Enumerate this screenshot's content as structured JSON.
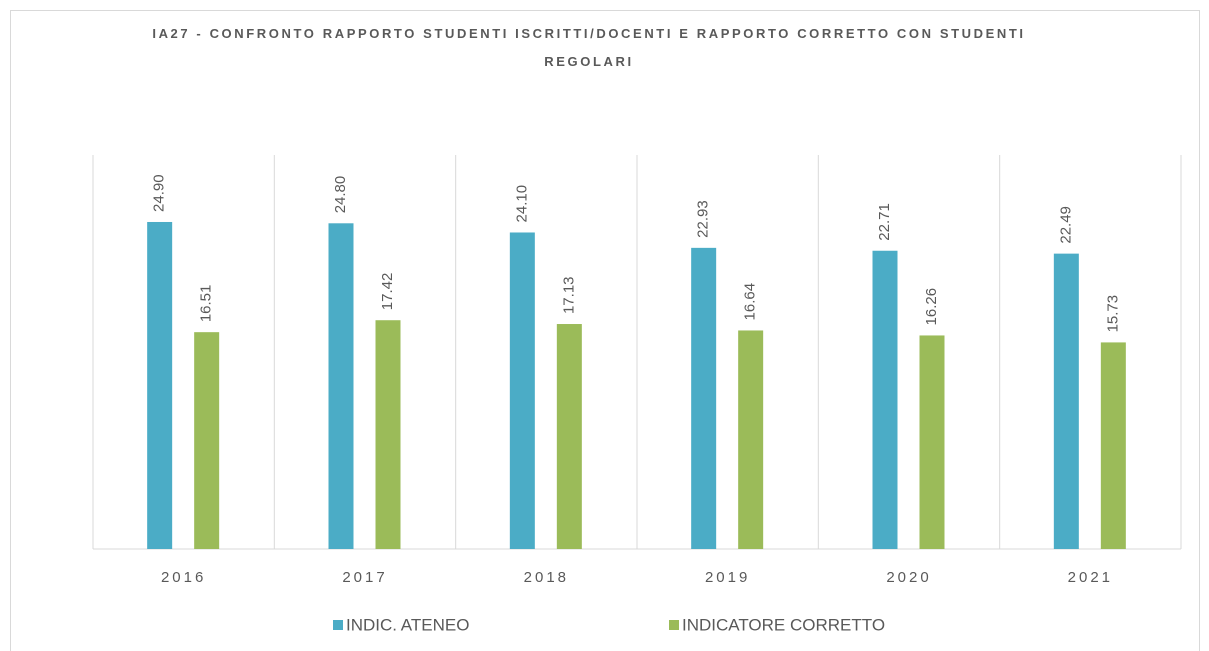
{
  "chart_data": {
    "type": "bar",
    "title": "IA27 - CONFRONTO RAPPORTO STUDENTI ISCRITTI/DOCENTI E RAPPORTO CORRETTO CON STUDENTI REGOLARI",
    "categories": [
      "2016",
      "2017",
      "2018",
      "2019",
      "2020",
      "2021"
    ],
    "series": [
      {
        "name": "INDIC. ATENEO",
        "color": "#4bacc6",
        "values": [
          24.9,
          24.8,
          24.1,
          22.93,
          22.71,
          22.49
        ],
        "value_labels": [
          "24.90",
          "24.80",
          "24.10",
          "22.93",
          "22.71",
          "22.49"
        ]
      },
      {
        "name": "INDICATORE CORRETTO",
        "color": "#9bbb59",
        "values": [
          16.51,
          17.42,
          17.13,
          16.64,
          16.26,
          15.73
        ],
        "value_labels": [
          "16.51",
          "17.42",
          "17.13",
          "16.64",
          "16.26",
          "15.73"
        ]
      }
    ],
    "ylim": [
      0,
      30
    ],
    "legend": "bottom"
  }
}
